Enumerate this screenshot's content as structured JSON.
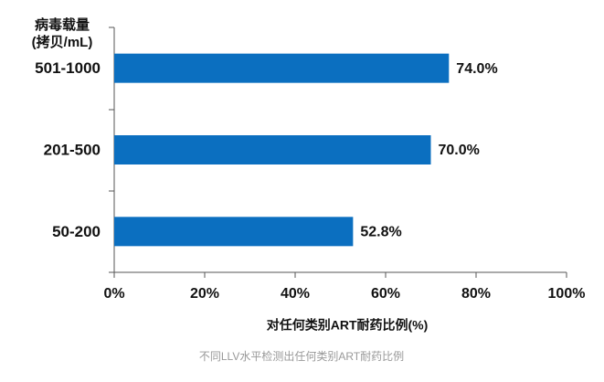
{
  "chart_data": {
    "type": "barh",
    "ylabel": [
      "病毒载量",
      "(拷贝/mL)"
    ],
    "xlabel": "对任何类别ART耐药比例(%)",
    "caption": "不同LLV水平检测出任何类别ART耐药比例",
    "categories": [
      "501-1000",
      "201-500",
      "50-200"
    ],
    "values": [
      74.0,
      70.0,
      52.8
    ],
    "value_labels": [
      "74.0%",
      "70.0%",
      "52.8%"
    ],
    "color": "#0b6fc0",
    "xlim": [
      0,
      100
    ],
    "xticks": [
      {
        "value": 0,
        "label": "0%"
      },
      {
        "value": 20,
        "label": "20%"
      },
      {
        "value": 40,
        "label": "40%"
      },
      {
        "value": 60,
        "label": "60%"
      },
      {
        "value": 80,
        "label": "80%"
      },
      {
        "value": 100,
        "label": "100%"
      }
    ]
  }
}
